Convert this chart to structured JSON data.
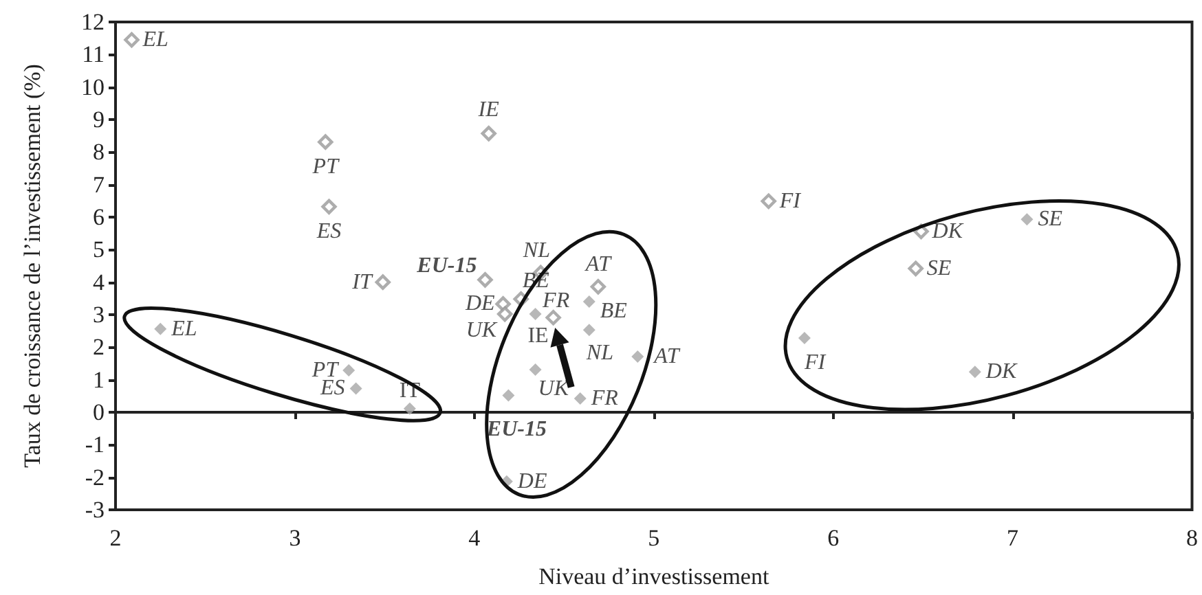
{
  "chart_data": {
    "type": "scatter",
    "xlabel": "Niveau d’investissement",
    "ylabel": "Taux de croissance de l’investissement (%)",
    "xlim": [
      2,
      8
    ],
    "xticks": [
      2,
      3,
      4,
      5,
      6,
      7,
      8
    ],
    "ylim": [
      -3,
      12
    ],
    "yticks": [
      -3,
      -2,
      -1,
      0,
      1,
      2,
      3,
      4,
      5,
      6,
      7,
      8,
      9,
      10,
      11,
      12
    ],
    "marker": "diamond",
    "series": [
      {
        "color": "#999999",
        "x": [
          2.09,
          3.17,
          3.19,
          3.49,
          4.08,
          4.06,
          4.37,
          4.26,
          4.16,
          4.17,
          4.44,
          4.69,
          5.64,
          6.49,
          6.46
        ],
        "values": [
          11.45,
          8.31,
          6.32,
          4.0,
          8.57,
          4.07,
          4.29,
          3.48,
          3.33,
          3.02,
          2.91,
          3.86,
          6.49,
          5.56,
          4.42
        ]
      },
      {
        "color": "#a6a6a6",
        "x": [
          2.25,
          3.3,
          3.34,
          3.64,
          4.34,
          4.64,
          4.64,
          4.91,
          4.34,
          4.19,
          4.59,
          4.18,
          5.84,
          6.79,
          7.08
        ],
        "values": [
          2.56,
          1.29,
          0.73,
          0.11,
          3.02,
          3.4,
          2.53,
          1.71,
          1.31,
          0.52,
          0.42,
          -2.13,
          2.28,
          1.24,
          5.93
        ]
      }
    ],
    "annotations": [
      {
        "text": "EL",
        "x": 2.09,
        "y": 11.45
      },
      {
        "text": "PT",
        "x": 3.17,
        "y": 8.31
      },
      {
        "text": "ES",
        "x": 3.19,
        "y": 6.32
      },
      {
        "text": "IT",
        "x": 3.49,
        "y": 4.0
      },
      {
        "text": "IE",
        "x": 4.08,
        "y": 8.57
      },
      {
        "text": "EU-15",
        "x": 4.06,
        "y": 4.07
      },
      {
        "text": "NL",
        "x": 4.37,
        "y": 4.29
      },
      {
        "text": "BE",
        "x": 4.26,
        "y": 3.48
      },
      {
        "text": "DE",
        "x": 4.16,
        "y": 3.33
      },
      {
        "text": "UK",
        "x": 4.17,
        "y": 3.02
      },
      {
        "text": "FR",
        "x": 4.44,
        "y": 2.91
      },
      {
        "text": "AT",
        "x": 4.69,
        "y": 3.86
      },
      {
        "text": "FI",
        "x": 5.64,
        "y": 6.49
      },
      {
        "text": "DK",
        "x": 6.49,
        "y": 5.56
      },
      {
        "text": "SE",
        "x": 6.46,
        "y": 4.42
      },
      {
        "text": "EL",
        "x": 2.25,
        "y": 2.56
      },
      {
        "text": "PT",
        "x": 3.3,
        "y": 1.29
      },
      {
        "text": "ES",
        "x": 3.34,
        "y": 0.73
      },
      {
        "text": "IT",
        "x": 3.64,
        "y": 0.11
      },
      {
        "text": "IE",
        "x": 4.34,
        "y": 3.02
      },
      {
        "text": "BE",
        "x": 4.64,
        "y": 3.4
      },
      {
        "text": "NL",
        "x": 4.64,
        "y": 2.53
      },
      {
        "text": "AT",
        "x": 4.91,
        "y": 1.71
      },
      {
        "text": "UK",
        "x": 4.34,
        "y": 1.31
      },
      {
        "text": "EU-15",
        "x": 4.19,
        "y": 0.52
      },
      {
        "text": "FR",
        "x": 4.59,
        "y": 0.42
      },
      {
        "text": "DE",
        "x": 4.18,
        "y": -2.13
      },
      {
        "text": "FI",
        "x": 5.84,
        "y": 2.28
      },
      {
        "text": "DK",
        "x": 6.79,
        "y": 1.24
      },
      {
        "text": "SE",
        "x": 7.08,
        "y": 5.93
      }
    ]
  }
}
